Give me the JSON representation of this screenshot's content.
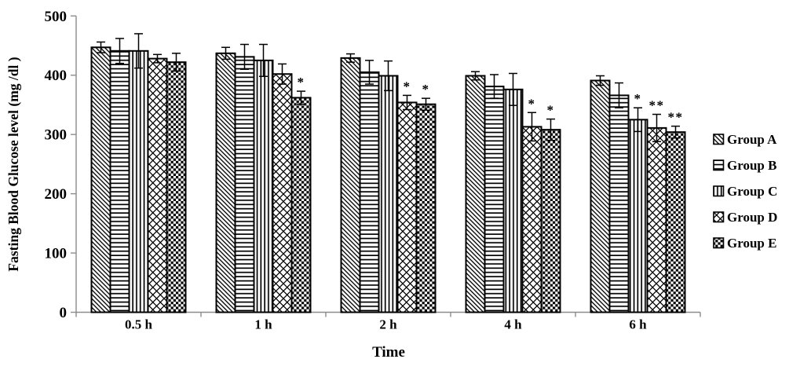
{
  "chart_data": {
    "type": "bar",
    "title": "",
    "xlabel": "Time",
    "ylabel": "Fasting Blood Glucose level (mg /dl )",
    "ylim": [
      0,
      500
    ],
    "yticks": [
      0,
      100,
      200,
      300,
      400,
      500
    ],
    "grid": false,
    "legend_position": "right",
    "axis_color": "#8c8c8c",
    "bar_color": "#000000",
    "categories": [
      "0.5 h",
      "1 h",
      "2 h",
      "4 h",
      "6 h"
    ],
    "series": [
      {
        "name": "Group A",
        "pattern": "diagonal-down",
        "values": [
          447,
          437,
          429,
          399,
          391
        ],
        "errors": [
          9,
          10,
          7,
          7,
          8
        ],
        "significance": [
          "",
          "",
          "",
          "",
          ""
        ]
      },
      {
        "name": "Group B",
        "pattern": "horizontal",
        "values": [
          441,
          431,
          405,
          381,
          366
        ],
        "errors": [
          21,
          21,
          20,
          20,
          21
        ],
        "significance": [
          "",
          "",
          "",
          "",
          ""
        ]
      },
      {
        "name": "Group C",
        "pattern": "vertical",
        "values": [
          441,
          425,
          399,
          376,
          325
        ],
        "errors": [
          29,
          27,
          25,
          27,
          20
        ],
        "significance": [
          "",
          "",
          "",
          "",
          "*"
        ]
      },
      {
        "name": "Group D",
        "pattern": "diamond-crosshatch",
        "values": [
          428,
          402,
          354,
          313,
          311
        ],
        "errors": [
          7,
          17,
          12,
          24,
          23
        ],
        "significance": [
          "",
          "",
          "*",
          "*",
          "**"
        ]
      },
      {
        "name": "Group E",
        "pattern": "checkerboard",
        "values": [
          422,
          362,
          351,
          308,
          304
        ],
        "errors": [
          15,
          11,
          10,
          18,
          10
        ],
        "significance": [
          "",
          "*",
          "*",
          "*",
          "**"
        ]
      }
    ]
  }
}
